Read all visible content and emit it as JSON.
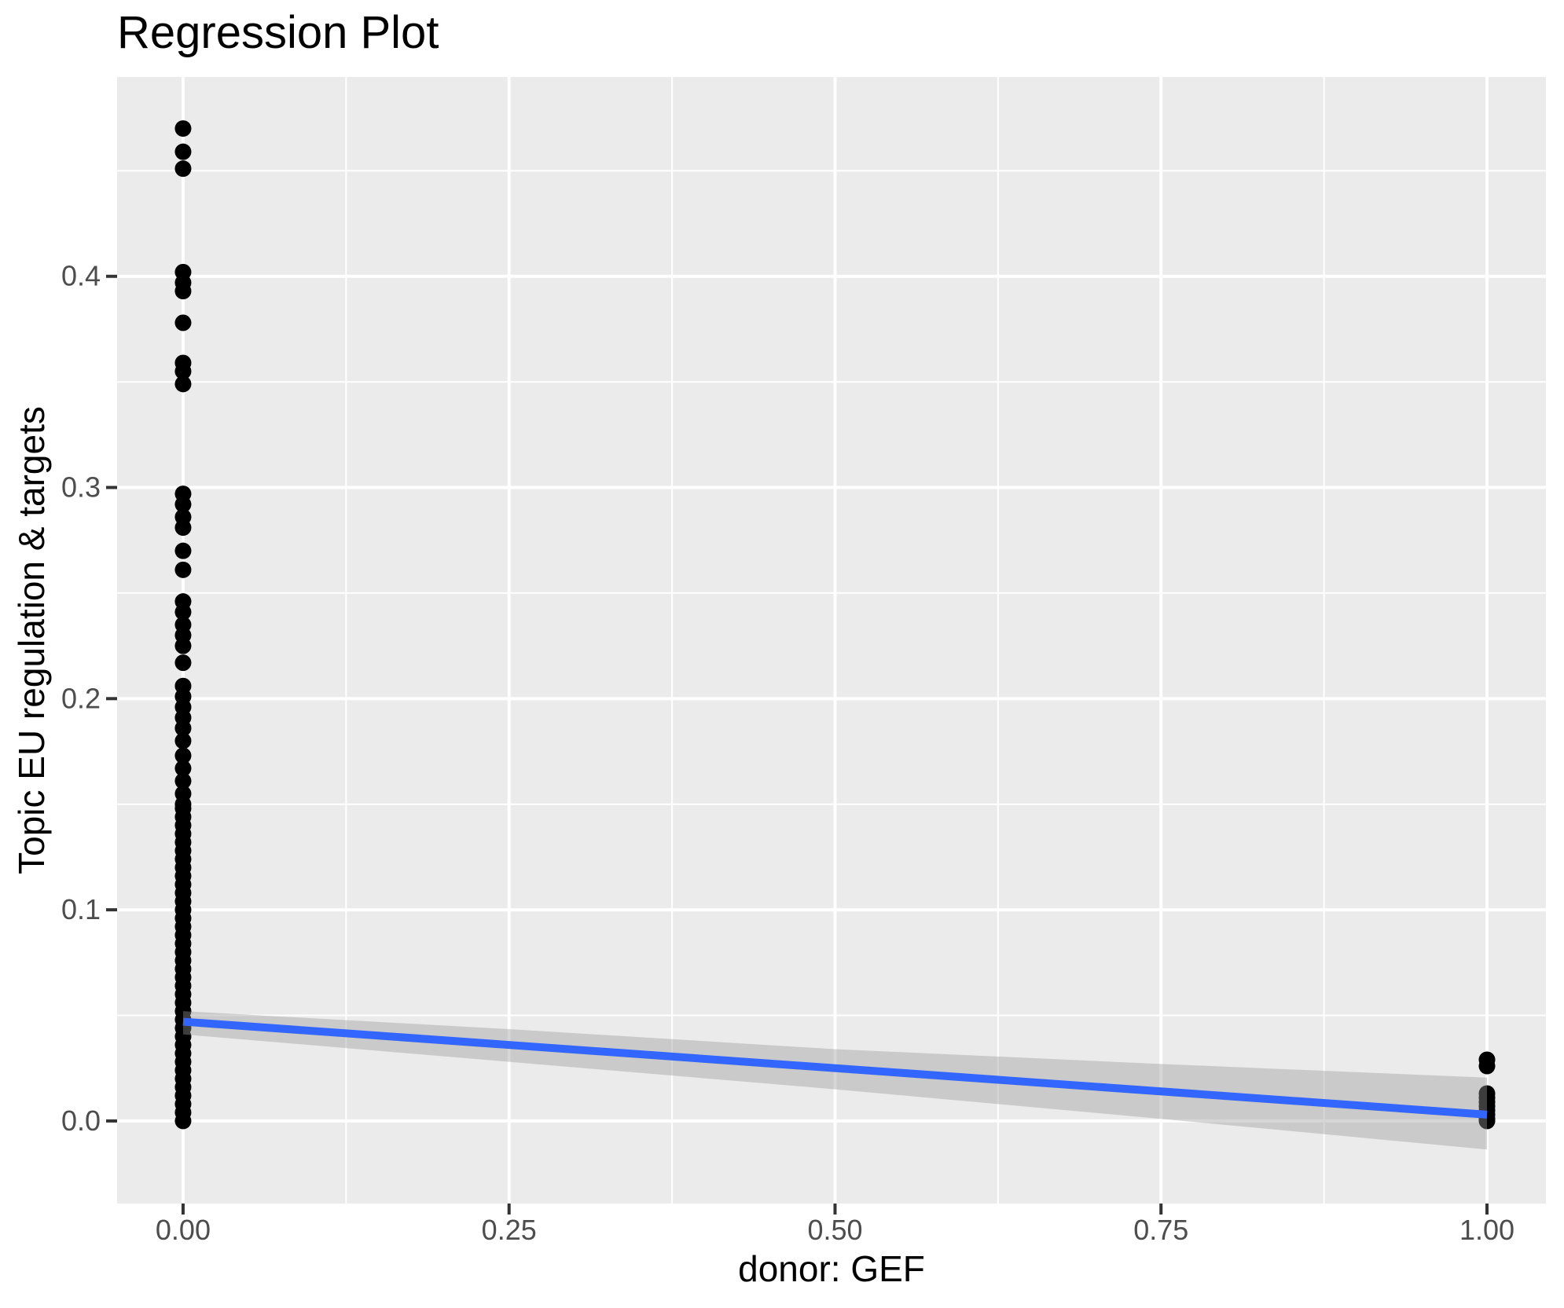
{
  "chart_data": {
    "type": "scatter",
    "title": "Regression Plot",
    "xlabel": "donor: GEF",
    "ylabel": "Topic EU regulation & targets",
    "legend_position": "none",
    "grid": true,
    "xlim": [
      -0.0506,
      1.0452
    ],
    "ylim": [
      -0.0391,
      0.4944
    ],
    "x_ticks": {
      "values": [
        0,
        0.25,
        0.5,
        0.75,
        1.0
      ],
      "labels": [
        "0.00",
        "0.25",
        "0.50",
        "0.75",
        "1.00"
      ]
    },
    "y_ticks": {
      "values": [
        0,
        0.1,
        0.2,
        0.3,
        0.4
      ],
      "labels": [
        "0.0",
        "0.1",
        "0.2",
        "0.3",
        "0.4"
      ]
    },
    "x_minor_gridlines": [
      0.125,
      0.375,
      0.625,
      0.875
    ],
    "y_minor_gridlines": [
      0.05,
      0.15,
      0.25,
      0.35,
      0.45
    ],
    "series": [
      {
        "name": "observations at donor GEF = 0",
        "x": 0,
        "y": [
          0.47,
          0.459,
          0.451,
          0.402,
          0.397,
          0.393,
          0.378,
          0.359,
          0.355,
          0.349,
          0.297,
          0.292,
          0.286,
          0.281,
          0.27,
          0.261,
          0.246,
          0.241,
          0.235,
          0.23,
          0.225,
          0.217,
          0.206,
          0.201,
          0.196,
          0.191,
          0.186,
          0.18,
          0.173,
          0.167,
          0.161,
          0.155,
          0.15,
          0.148,
          0.144,
          0.14,
          0.136,
          0.132,
          0.128,
          0.124,
          0.12,
          0.116,
          0.112,
          0.108,
          0.104,
          0.1,
          0.096,
          0.092,
          0.088,
          0.084,
          0.08,
          0.076,
          0.072,
          0.068,
          0.064,
          0.06,
          0.056,
          0.052,
          0.048,
          0.044,
          0.04,
          0.036,
          0.032,
          0.028,
          0.024,
          0.02,
          0.016,
          0.012,
          0.008,
          0.004,
          0.0
        ]
      },
      {
        "name": "observations at donor GEF = 1",
        "x": 1,
        "y": [
          0.029,
          0.026,
          0.013,
          0.011,
          0.009,
          0.007,
          0.005,
          0.003,
          0.001,
          0.0
        ]
      }
    ],
    "regression_line": {
      "x": [
        0,
        1
      ],
      "y": [
        0.047,
        0.003
      ]
    },
    "confidence_band": {
      "x": [
        0,
        0.25,
        0.5,
        0.75,
        1.0
      ],
      "upper": [
        0.052,
        0.0435,
        0.034,
        0.027,
        0.0205
      ],
      "lower": [
        0.041,
        0.028,
        0.015,
        0.001,
        -0.0135
      ]
    },
    "colors": {
      "panel_background": "#EBEBEB",
      "gridline": "#FFFFFF",
      "point": "#000000",
      "regression_line": "#3366FF",
      "confidence_band": "rgba(153,153,153,0.4)",
      "tick_label": "#4D4D4D",
      "tick_mark": "#333333",
      "title": "#000000"
    }
  }
}
